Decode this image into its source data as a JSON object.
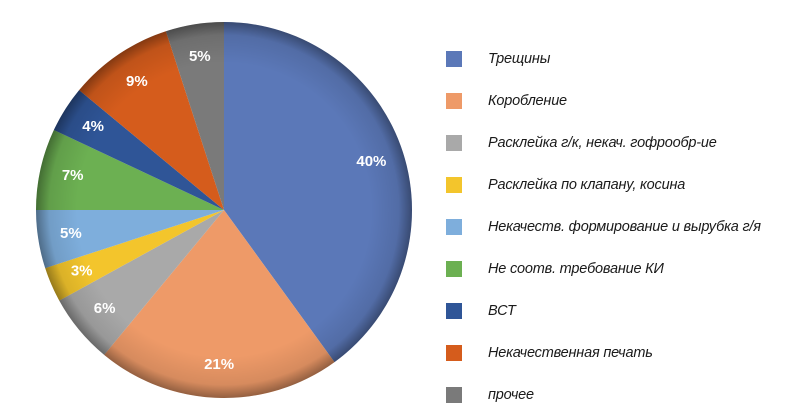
{
  "chart_data": {
    "type": "pie",
    "slices": [
      {
        "label": "Трещины",
        "value": 40,
        "display": "40%",
        "color": "#5b78b8"
      },
      {
        "label": "Коробление",
        "value": 21,
        "display": "21%",
        "color": "#ee9a68"
      },
      {
        "label": "Расклейка г/к, некач. гофрообр-ие",
        "value": 6,
        "display": "6%",
        "color": "#a9a9a9"
      },
      {
        "label": "Расклейка по клапану, косина",
        "value": 3,
        "display": "3%",
        "color": "#f3c52c"
      },
      {
        "label": "Некачеств. формирование и вырубка г/я",
        "value": 5,
        "display": "5%",
        "color": "#7eaedc"
      },
      {
        "label": "Не соотв. требование КИ",
        "value": 7,
        "display": "7%",
        "color": "#6cb052"
      },
      {
        "label": "ВСТ",
        "value": 4,
        "display": "4%",
        "color": "#2f5597"
      },
      {
        "label": "Некачественная печать",
        "value": 9,
        "display": "9%",
        "color": "#d55c1c"
      },
      {
        "label": "прочее",
        "value": 5,
        "display": "5%",
        "color": "#7a7a7a"
      }
    ],
    "start_angle": "12 o'clock",
    "direction": "clockwise",
    "legend_position": "right"
  }
}
